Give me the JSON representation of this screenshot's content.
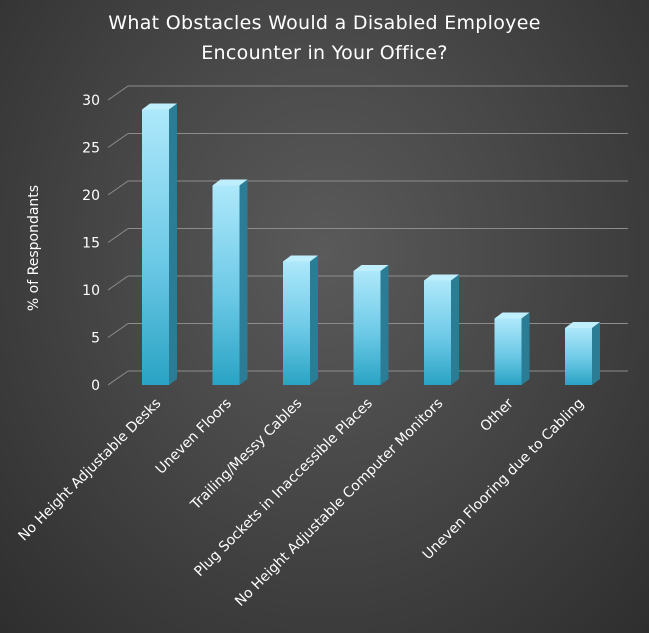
{
  "chart_data": {
    "type": "bar",
    "title_lines": [
      "What Obstacles Would a Disabled Employee",
      "Encounter in Your Office?"
    ],
    "xlabel": "",
    "ylabel": "% of Respondants",
    "ylim": [
      0,
      30
    ],
    "yticks": [
      0,
      5,
      10,
      15,
      20,
      25,
      30
    ],
    "grid": true,
    "legend": "none",
    "categories": [
      "No Height Adjustable Desks",
      "Uneven Floors",
      "Trailing/Messy Cables",
      "Plug Sockets in Inaccessible Places",
      "No Height Adjustable Computer Monitors",
      "Other",
      "Uneven Flooring due to Cabling"
    ],
    "values": [
      29,
      21,
      13,
      12,
      11,
      7,
      6
    ],
    "bar_color_top": "#aee8fb",
    "bar_color_bottom": "#2aa3c4",
    "bar_side_color": "#2b7d96",
    "bar_cap_color": "#bfeefc"
  }
}
